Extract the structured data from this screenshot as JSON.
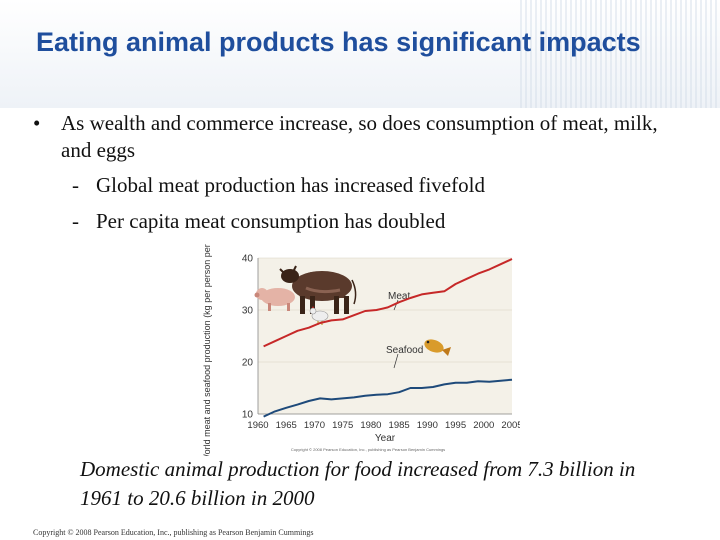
{
  "slide": {
    "title": "Eating animal products has significant impacts",
    "bullets": [
      {
        "text": "As wealth and commerce increase, so does consumption of meat, milk, and eggs",
        "subs": [
          "Global meat production has increased fivefold",
          "Per capita meat consumption has doubled"
        ]
      }
    ],
    "caption": "Domestic animal production for food increased from 7.3 billion in 1961 to 20.6 billion in 2000",
    "copyright": "Copyright © 2008 Pearson Education, Inc., publishing as Pearson Benjamin Cummings"
  },
  "chart_data": {
    "type": "line",
    "xlabel": "Year",
    "ylabel": "World meat and seafood production (kg per person per year)",
    "xlim": [
      1960,
      2005
    ],
    "ylim": [
      10,
      40
    ],
    "xticks": [
      1960,
      1965,
      1970,
      1975,
      1980,
      1985,
      1990,
      1995,
      2000,
      2005
    ],
    "yticks": [
      10,
      20,
      30,
      40
    ],
    "chart_copyright": "Copyright © 2008 Pearson Education, Inc., publishing as Pearson Benjamin Cummings",
    "series": [
      {
        "name": "Meat",
        "color": "#c62828",
        "x": [
          1961,
          1963,
          1965,
          1967,
          1969,
          1971,
          1973,
          1975,
          1977,
          1979,
          1981,
          1983,
          1985,
          1987,
          1989,
          1991,
          1993,
          1995,
          1997,
          1999,
          2001,
          2003,
          2005
        ],
        "values": [
          23,
          24,
          25,
          26,
          26.6,
          27.5,
          28,
          28.2,
          29,
          29.8,
          30,
          30.5,
          31.5,
          32.3,
          33,
          33.3,
          33.6,
          35,
          36,
          37,
          37.8,
          38.8,
          39.8
        ]
      },
      {
        "name": "Seafood",
        "color": "#1e4a7a",
        "x": [
          1961,
          1963,
          1965,
          1967,
          1969,
          1971,
          1973,
          1975,
          1977,
          1979,
          1981,
          1983,
          1985,
          1987,
          1989,
          1991,
          1993,
          1995,
          1997,
          1999,
          2001,
          2003,
          2005
        ],
        "values": [
          9.5,
          10.5,
          11.2,
          11.8,
          12.5,
          13,
          12.8,
          13,
          13.2,
          13.5,
          13.7,
          13.8,
          14.2,
          15,
          15,
          15.2,
          15.7,
          16,
          16,
          16.3,
          16.2,
          16.4,
          16.6
        ]
      }
    ]
  }
}
